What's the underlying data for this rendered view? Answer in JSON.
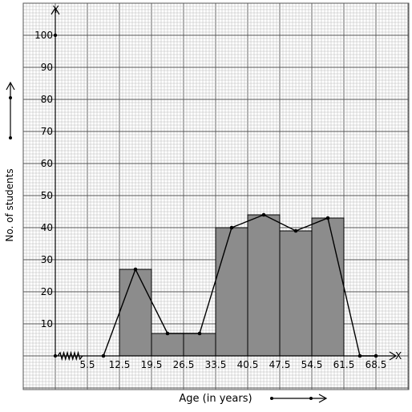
{
  "chart_data": {
    "type": "bar",
    "subtype": "histogram-with-frequency-polygon",
    "xlabel": "Age (in years)",
    "ylabel": "No. of students",
    "x_axis_letter": "X",
    "y_axis_letter": "Y",
    "x_tick_labels": [
      "5.5",
      "12.5",
      "19.5",
      "26.5",
      "33.5",
      "40.5",
      "47.5",
      "54.5",
      "61.5",
      "68.5"
    ],
    "y_tick_labels": [
      "10",
      "20",
      "30",
      "40",
      "50",
      "60",
      "70",
      "80",
      "90",
      "100"
    ],
    "ylim": [
      0,
      100
    ],
    "xlim": [
      5.5,
      68.5
    ],
    "axis_break": true,
    "grid": true,
    "bars": [
      {
        "from": 12.5,
        "to": 19.5,
        "value": 27
      },
      {
        "from": 19.5,
        "to": 26.5,
        "value": 7
      },
      {
        "from": 26.5,
        "to": 33.5,
        "value": 7
      },
      {
        "from": 33.5,
        "to": 40.5,
        "value": 40
      },
      {
        "from": 40.5,
        "to": 47.5,
        "value": 44
      },
      {
        "from": 47.5,
        "to": 54.5,
        "value": 39
      },
      {
        "from": 54.5,
        "to": 61.5,
        "value": 43
      }
    ],
    "polygon": [
      {
        "x": 9,
        "y": 0
      },
      {
        "x": 16,
        "y": 27
      },
      {
        "x": 23,
        "y": 7
      },
      {
        "x": 30,
        "y": 7
      },
      {
        "x": 37,
        "y": 40
      },
      {
        "x": 44,
        "y": 44
      },
      {
        "x": 51,
        "y": 39
      },
      {
        "x": 58,
        "y": 43
      },
      {
        "x": 65,
        "y": 0
      },
      {
        "x": 68.5,
        "y": 0
      }
    ],
    "colors": {
      "bar_fill": "#8c8c8c",
      "bar_stroke": "#000000",
      "grid_minor": "#b8b8b8",
      "grid_major": "#555555",
      "axis": "#000000",
      "polygon": "#000000"
    }
  }
}
